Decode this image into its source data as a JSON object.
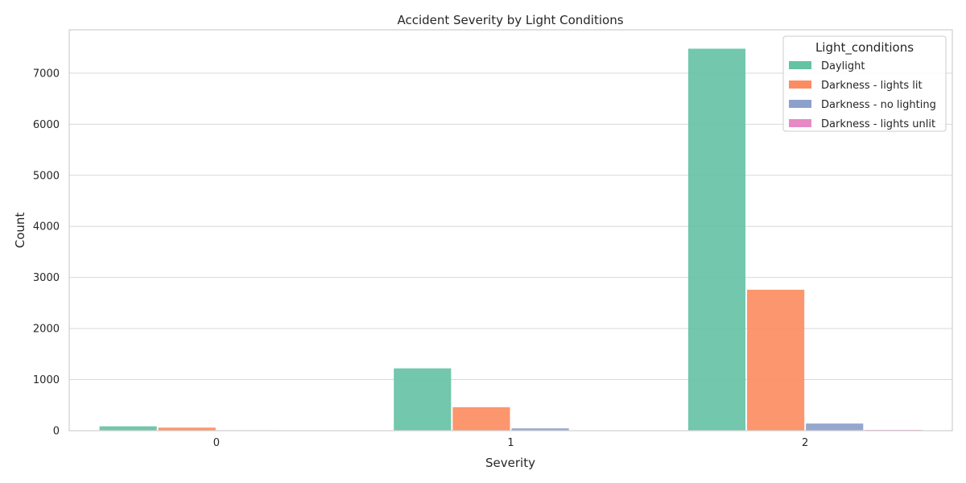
{
  "chart_data": {
    "type": "bar",
    "title": "Accident Severity by Light Conditions",
    "xlabel": "Severity",
    "ylabel": "Count",
    "categories": [
      "0",
      "1",
      "2"
    ],
    "ylim": [
      0,
      7850
    ],
    "yticks": [
      0,
      1000,
      2000,
      3000,
      4000,
      5000,
      6000,
      7000
    ],
    "grid": true,
    "legend": {
      "title": "Light_conditions",
      "placement": "top-right"
    },
    "series": [
      {
        "name": "Daylight",
        "color": "#66c2a5",
        "values": [
          85,
          1220,
          7480
        ]
      },
      {
        "name": "Darkness - lights lit",
        "color": "#fc8d62",
        "values": [
          60,
          460,
          2760
        ]
      },
      {
        "name": "Darkness - no lighting",
        "color": "#8da0cb",
        "values": [
          8,
          45,
          140
        ]
      },
      {
        "name": "Darkness - lights unlit",
        "color": "#e78ac3",
        "values": [
          1,
          5,
          15
        ]
      }
    ]
  }
}
